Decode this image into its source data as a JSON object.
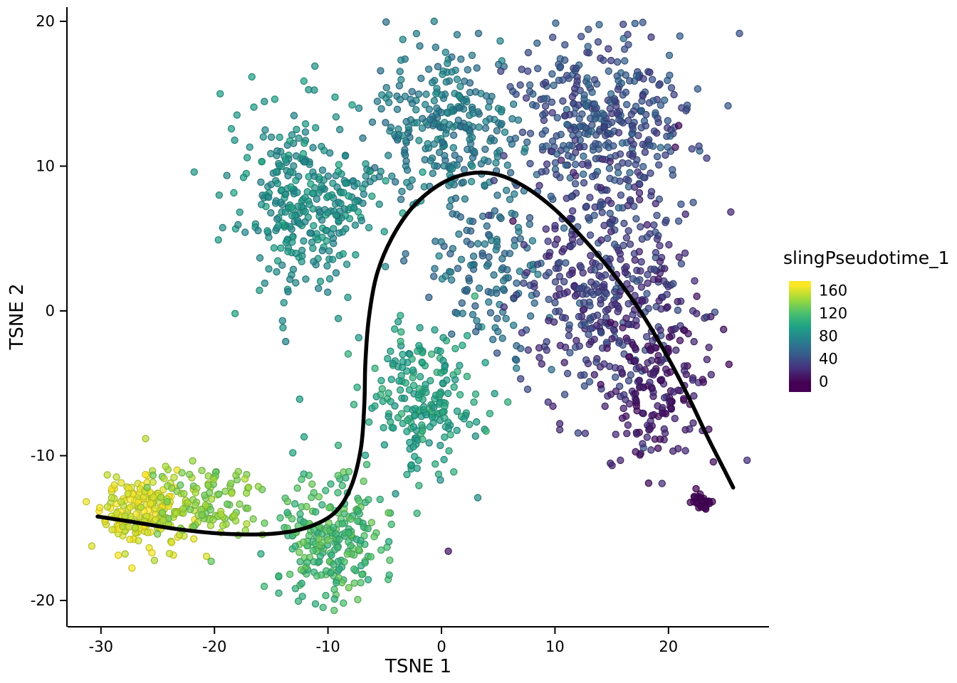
{
  "chart_data": {
    "type": "scatter",
    "title": "",
    "xlabel": "TSNE 1",
    "ylabel": "TSNE 2",
    "xlim": [
      -32.9,
      28.9
    ],
    "ylim": [
      -21.8,
      21.0
    ],
    "x_ticks": [
      -30,
      -20,
      -10,
      0,
      10,
      20
    ],
    "y_ticks": [
      -20,
      -10,
      0,
      10,
      20
    ],
    "grid": false,
    "legend": {
      "title": "slingPseudotime_1",
      "tick_values": [
        160,
        120,
        80,
        40,
        0
      ],
      "position": "right",
      "value_min": 0,
      "value_max": 170,
      "bar_value_range": [
        -17.5,
        177.5
      ]
    },
    "colormap_name": "viridis",
    "colormap_stops": [
      "#440154",
      "#46327e",
      "#365c8d",
      "#277f8e",
      "#1fa187",
      "#4ac16d",
      "#a0da39",
      "#fde725"
    ],
    "point_style": {
      "radius": 4.6,
      "fill_opacity": 0.72,
      "stroke_width": 1.2,
      "stroke_darken": 0.82
    },
    "curve": {
      "color": "#000000",
      "width": 5.5,
      "points": [
        [
          -30.3,
          -14.2
        ],
        [
          -27,
          -14.6
        ],
        [
          -23,
          -15.1
        ],
        [
          -19,
          -15.4
        ],
        [
          -15,
          -15.4
        ],
        [
          -12,
          -15.0
        ],
        [
          -9.5,
          -14.0
        ],
        [
          -8.0,
          -12.2
        ],
        [
          -7.1,
          -9.5
        ],
        [
          -6.8,
          -6.5
        ],
        [
          -6.7,
          -3.5
        ],
        [
          -6.4,
          -0.5
        ],
        [
          -5.7,
          2.5
        ],
        [
          -4.4,
          5.0
        ],
        [
          -2.5,
          7.2
        ],
        [
          0,
          8.8
        ],
        [
          2.5,
          9.5
        ],
        [
          5,
          9.4
        ],
        [
          7.5,
          8.5
        ],
        [
          10,
          7.0
        ],
        [
          12.5,
          5.0
        ],
        [
          15,
          2.7
        ],
        [
          17.5,
          0.0
        ],
        [
          19.8,
          -3.0
        ],
        [
          21.8,
          -6.0
        ],
        [
          23.5,
          -8.8
        ],
        [
          24.8,
          -10.8
        ],
        [
          25.7,
          -12.2
        ]
      ]
    },
    "clusters": [
      {
        "name": "yellow-core",
        "center": [
          -26.2,
          -13.9
        ],
        "sd": [
          2.1,
          1.3
        ],
        "count": 200,
        "pt": [
          150,
          172
        ]
      },
      {
        "name": "yellow-green",
        "center": [
          -20.5,
          -13.2
        ],
        "sd": [
          2.4,
          1.3
        ],
        "count": 120,
        "pt": [
          128,
          152
        ]
      },
      {
        "name": "green-bottom",
        "center": [
          -9.5,
          -15.8
        ],
        "sd": [
          2.6,
          2.2
        ],
        "count": 240,
        "pt": [
          104,
          132
        ]
      },
      {
        "name": "green-mid",
        "center": [
          -1.5,
          -6.2
        ],
        "sd": [
          2.6,
          2.4
        ],
        "count": 210,
        "pt": [
          88,
          112
        ]
      },
      {
        "name": "teal-left",
        "center": [
          -12,
          7.5
        ],
        "sd": [
          3.3,
          3.2
        ],
        "count": 330,
        "pt": [
          74,
          100
        ]
      },
      {
        "name": "teal-top",
        "center": [
          0.5,
          12.5
        ],
        "sd": [
          3.2,
          3.0
        ],
        "count": 280,
        "pt": [
          60,
          84
        ]
      },
      {
        "name": "teal-blue-mid",
        "center": [
          4.5,
          3.0
        ],
        "sd": [
          2.6,
          2.6
        ],
        "count": 130,
        "pt": [
          52,
          74
        ]
      },
      {
        "name": "blue-topright",
        "center": [
          14,
          13
        ],
        "sd": [
          3.8,
          3.0
        ],
        "count": 380,
        "pt": [
          28,
          58
        ]
      },
      {
        "name": "blue-right",
        "center": [
          14.5,
          1.5
        ],
        "sd": [
          3.6,
          3.8
        ],
        "count": 390,
        "pt": [
          16,
          46
        ]
      },
      {
        "name": "blue-purple-low",
        "center": [
          19,
          -5.5
        ],
        "sd": [
          2.3,
          2.6
        ],
        "count": 170,
        "pt": [
          4,
          24
        ]
      },
      {
        "name": "purple-clump",
        "center": [
          22.8,
          -13.2
        ],
        "sd": [
          0.45,
          0.35
        ],
        "count": 30,
        "pt": [
          0,
          4
        ]
      }
    ],
    "extra_points": [
      [
        6.3,
        6.2,
        6
      ],
      [
        0.6,
        -16.6,
        10
      ],
      [
        20.9,
        12.8,
        4
      ],
      [
        20.6,
        11.3,
        8
      ],
      [
        14.9,
        -0.8,
        6
      ],
      [
        9.4,
        -6.3,
        25
      ],
      [
        -12.5,
        -6.1,
        95
      ],
      [
        -12.1,
        -8.7,
        98
      ],
      [
        -13.1,
        -9.8,
        100
      ],
      [
        22.3,
        -12.9,
        1
      ],
      [
        9.8,
        18.9,
        40
      ],
      [
        6.6,
        -3.4,
        60
      ],
      [
        3.2,
        -12.9,
        85
      ],
      [
        -17.9,
        -11.1,
        140
      ]
    ],
    "seed": 42,
    "axis_color": "#000000",
    "background": "#ffffff"
  }
}
